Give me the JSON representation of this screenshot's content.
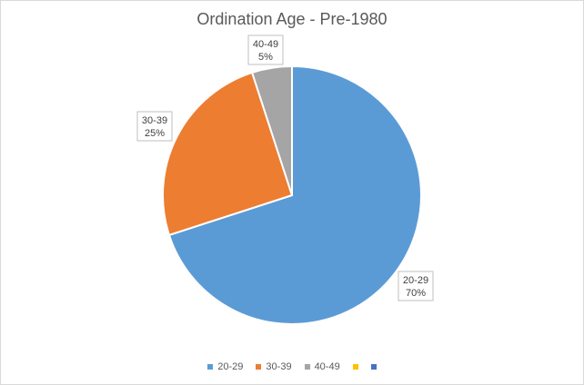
{
  "chart_data": {
    "type": "pie",
    "title": "Ordination Age - Pre-1980",
    "categories": [
      "20-29",
      "30-39",
      "40-49",
      ""
    ],
    "values": [
      70,
      25,
      5,
      0
    ],
    "data_labels": [
      {
        "category": "20-29",
        "percent": "70%"
      },
      {
        "category": "30-39",
        "percent": "25%"
      },
      {
        "category": "40-49",
        "percent": "5%"
      }
    ],
    "colors": [
      "#5b9bd5",
      "#ed7d31",
      "#a5a5a5",
      "#ffc000",
      "#4472c4"
    ],
    "legend": {
      "position": "bottom",
      "entries": [
        {
          "label": "20-29",
          "color": "#5b9bd5"
        },
        {
          "label": "30-39",
          "color": "#ed7d31"
        },
        {
          "label": "40-49",
          "color": "#a5a5a5"
        },
        {
          "label": "",
          "color": "#ffc000"
        },
        {
          "label": "",
          "color": "#4472c4"
        }
      ]
    }
  }
}
